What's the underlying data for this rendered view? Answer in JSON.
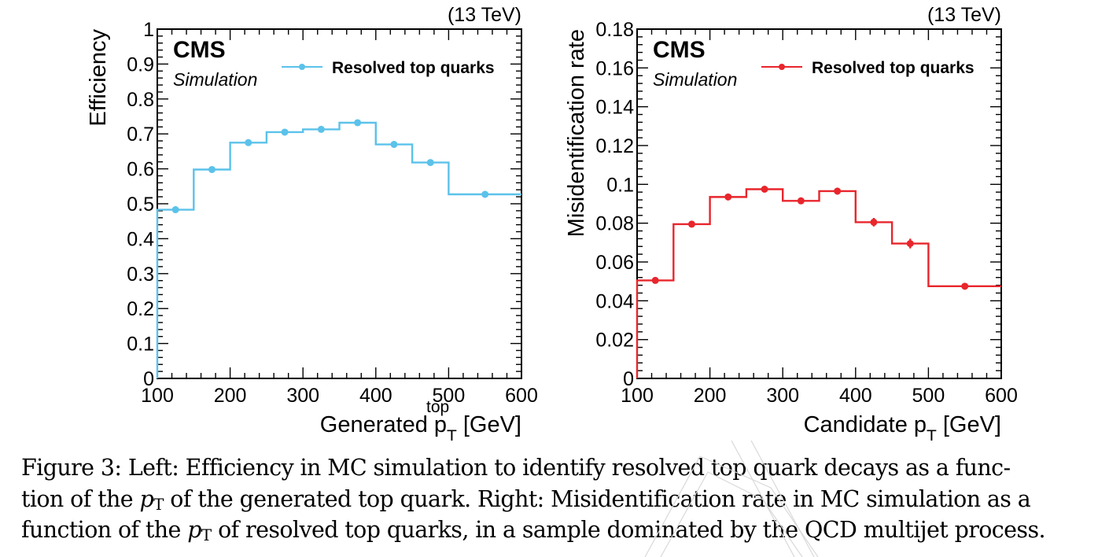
{
  "chart_data": [
    {
      "type": "line",
      "step": true,
      "energy_label": "(13 TeV)",
      "experiment": "CMS",
      "subtitle": "Simulation",
      "legend": "Resolved top quarks",
      "legend_placement": "top-right",
      "ylabel": "Efficiency",
      "xlabel": "Generated p",
      "xlabel_sub": "T",
      "xlabel_sup": "top",
      "xlabel_units": "[GeV]",
      "xlim": [
        100,
        600
      ],
      "ylim": [
        0,
        1
      ],
      "x_ticks": [
        "100",
        "200",
        "300",
        "400",
        "500",
        "600"
      ],
      "y_ticks": [
        "0",
        "0.1",
        "0.2",
        "0.3",
        "0.4",
        "0.5",
        "0.6",
        "0.7",
        "0.8",
        "0.9",
        "1"
      ],
      "grid": false,
      "color": "#5bc2ea",
      "series": [
        {
          "name": "Resolved top quarks",
          "bins": [
            [
              100,
              150
            ],
            [
              150,
              200
            ],
            [
              200,
              250
            ],
            [
              250,
              300
            ],
            [
              300,
              350
            ],
            [
              350,
              400
            ],
            [
              400,
              450
            ],
            [
              450,
              500
            ],
            [
              500,
              600
            ]
          ],
          "x": [
            125,
            175,
            225,
            275,
            325,
            375,
            425,
            475,
            550
          ],
          "y": [
            0.483,
            0.598,
            0.675,
            0.705,
            0.713,
            0.732,
            0.67,
            0.618,
            0.527
          ],
          "err": [
            0.002,
            0.002,
            0.002,
            0.002,
            0.002,
            0.002,
            0.002,
            0.002,
            0.002
          ]
        }
      ]
    },
    {
      "type": "line",
      "step": true,
      "energy_label": "(13 TeV)",
      "experiment": "CMS",
      "subtitle": "Simulation",
      "legend": "Resolved top quarks",
      "legend_placement": "top-right",
      "ylabel": "Misidentification rate",
      "xlabel": "Candidate p",
      "xlabel_sub": "T",
      "xlabel_sup": "",
      "xlabel_units": "[GeV]",
      "xlim": [
        100,
        600
      ],
      "ylim": [
        0,
        0.18
      ],
      "x_ticks": [
        "100",
        "200",
        "300",
        "400",
        "500",
        "600"
      ],
      "y_ticks": [
        "0",
        "0.02",
        "0.04",
        "0.06",
        "0.08",
        "0.1",
        "0.12",
        "0.14",
        "0.16",
        "0.18"
      ],
      "grid": false,
      "color": "#e8262c",
      "series": [
        {
          "name": "Resolved top quarks",
          "bins": [
            [
              100,
              150
            ],
            [
              150,
              200
            ],
            [
              200,
              250
            ],
            [
              250,
              300
            ],
            [
              300,
              350
            ],
            [
              350,
              400
            ],
            [
              400,
              450
            ],
            [
              450,
              500
            ],
            [
              500,
              600
            ]
          ],
          "x": [
            125,
            175,
            225,
            275,
            325,
            375,
            425,
            475,
            550
          ],
          "y": [
            0.0505,
            0.0795,
            0.0935,
            0.0975,
            0.0915,
            0.0965,
            0.0805,
            0.0695,
            0.0475
          ],
          "err": [
            0.0006,
            0.0008,
            0.0012,
            0.0015,
            0.0015,
            0.0018,
            0.0022,
            0.0025,
            0.0012
          ]
        }
      ]
    }
  ],
  "caption": {
    "prefix": "Figure 3: Left: Efficiency in MC simulation to identify resolved top quark decays as a func-",
    "line2_a": "tion of the ",
    "p": "p",
    "T": "T",
    "line2_b": " of the generated top quark. Right: Misidentification rate in MC simulation as a",
    "line3_a": "function of the ",
    "line3_b": " of resolved top quarks, in a sample dominated by the QCD multijet process."
  }
}
